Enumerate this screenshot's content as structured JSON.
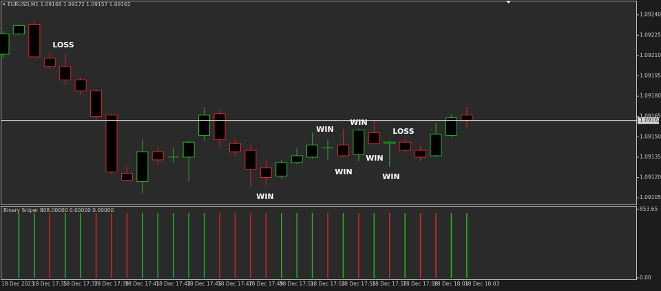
{
  "chart_data": [
    {
      "type": "candlestick",
      "title": "EURUSD,M1  1.09166 1.09172 1.09157 1.09162",
      "categories": [
        "18 Dec 2023",
        null,
        "18 Dec 17:35",
        null,
        "18 Dec 17:37",
        null,
        "18 Dec 17:39",
        null,
        "18 Dec 17:41",
        null,
        "18 Dec 17:43",
        null,
        "18 Dec 17:45",
        null,
        "18 Dec 17:47",
        null,
        "18 Dec 17:49",
        null,
        "18 Dec 17:51",
        null,
        "18 Dec 17:53",
        null,
        "18 Dec 17:55",
        null,
        "18 Dec 17:57",
        null,
        "18 Dec 17:59",
        null,
        "18 Dec 18:01",
        null,
        "18 Dec 18:03"
      ],
      "open": [
        1.09211,
        1.09226,
        1.09233,
        1.09208,
        1.09202,
        1.09192,
        1.09184,
        1.09166,
        1.09123,
        1.09117,
        1.09139,
        1.09135,
        1.09135,
        1.09151,
        1.09167,
        1.09145,
        1.0914,
        1.09127,
        1.09121,
        1.09131,
        1.09135,
        1.09142,
        1.09144,
        1.09137,
        1.09153,
        1.09145,
        1.09146,
        1.0914,
        1.09136,
        1.09151,
        1.09166
      ],
      "high": [
        1.09228,
        1.09233,
        1.09235,
        1.09212,
        1.09211,
        1.09194,
        1.09185,
        1.09167,
        1.09128,
        1.09148,
        1.09143,
        1.09142,
        1.09147,
        1.09172,
        1.0917,
        1.09148,
        1.09144,
        1.09133,
        1.09133,
        1.09142,
        1.09153,
        1.09148,
        1.09156,
        1.09156,
        1.09162,
        1.09147,
        1.09148,
        1.09143,
        1.0916,
        1.09166,
        1.09172
      ],
      "low": [
        1.09208,
        1.09225,
        1.09208,
        1.092,
        1.09188,
        1.09181,
        1.09162,
        1.09123,
        1.09117,
        1.09108,
        1.09129,
        1.09131,
        1.09117,
        1.09147,
        1.09142,
        1.09136,
        1.09113,
        1.09114,
        1.09119,
        1.0913,
        1.09134,
        1.09133,
        1.09135,
        1.09132,
        1.09144,
        1.09128,
        1.09139,
        1.09132,
        1.09135,
        1.0915,
        1.09157
      ],
      "close": [
        1.09226,
        1.09232,
        1.09209,
        1.09202,
        1.09192,
        1.09184,
        1.09165,
        1.09124,
        1.09118,
        1.09139,
        1.09133,
        1.09135,
        1.09146,
        1.09166,
        1.09148,
        1.09139,
        1.09126,
        1.0912,
        1.09131,
        1.09136,
        1.09144,
        1.09142,
        1.09136,
        1.09155,
        1.09145,
        1.09146,
        1.0914,
        1.09135,
        1.09152,
        1.09164,
        1.09162
      ],
      "up_color": "#25b825",
      "down_color": "#e02424",
      "ylim": [
        1.091,
        1.0925
      ],
      "yticks": [
        {
          "value": 1.0924,
          "label": "1.09240"
        },
        1.09225,
        {
          "value": 1.0921,
          "label": "1.09210"
        },
        1.09195,
        {
          "value": 1.0918,
          "label": "1.09180"
        },
        1.09165,
        {
          "value": 1.0915,
          "label": "1.09150"
        },
        1.09135,
        {
          "value": 1.0912,
          "label": "1.09120"
        },
        1.09105
      ],
      "current_price": 1.09162,
      "annotations": [
        "LOSS",
        "WIN",
        "WIN",
        "WIN",
        "WIN",
        "WIN",
        "LOSS",
        "WIN"
      ]
    },
    {
      "type": "bar",
      "title": "Binary Sniper 808.00000 0.00000 0.00000",
      "values": [
        null,
        808,
        808,
        808,
        808,
        808,
        808,
        808,
        808,
        808,
        808,
        808,
        808,
        808,
        808,
        808,
        808,
        808,
        808,
        808,
        808,
        808,
        808,
        808,
        808,
        808,
        808,
        808,
        808,
        808,
        808
      ],
      "colors": [
        null,
        "#25b825",
        "#25b825",
        "#e02424",
        "#25b825",
        "#25b825",
        "#e02424",
        "#e02424",
        "#e02424",
        "#25b825",
        "#25b825",
        "#25b825",
        "#25b825",
        "#25b825",
        "#e02424",
        "#e02424",
        "#e02424",
        "#e02424",
        "#25b825",
        "#25b825",
        "#25b825",
        "#e02424",
        "#25b825",
        "#e02424",
        "#25b825",
        "#e02424",
        "#25b825",
        "#e02424",
        "#e02424",
        "#25b825",
        "#25b825"
      ],
      "ylim": [
        0,
        853.65
      ],
      "yticks": [
        853.65,
        {
          "value": 0,
          "label": "0.00"
        }
      ]
    }
  ]
}
